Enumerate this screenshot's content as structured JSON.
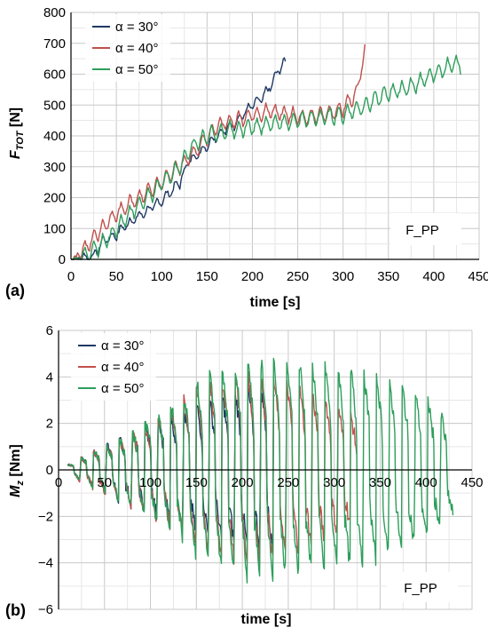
{
  "chart_data": [
    {
      "type": "line",
      "panel_label": "(a)",
      "xlabel": "time [s]",
      "ylabel": "F_TOT [N]",
      "ylabel_main": "F",
      "ylabel_sub": "TOT",
      "ylabel_unit": " [N]",
      "xlim": [
        0,
        450
      ],
      "ylim": [
        0,
        800
      ],
      "xticks": [
        "0",
        "50",
        "100",
        "150",
        "200",
        "250",
        "300",
        "350",
        "400",
        "450"
      ],
      "yticks": [
        "0",
        "100",
        "200",
        "300",
        "400",
        "500",
        "600",
        "700",
        "800"
      ],
      "annotation": "F_PP",
      "grid": true,
      "legend_position": "top-left",
      "series": [
        {
          "name": "α = 30°",
          "color": "#1f3864",
          "x": [
            0,
            15,
            25,
            35,
            50,
            60,
            75,
            90,
            100,
            110,
            120,
            130,
            140,
            150,
            160,
            170,
            180,
            190,
            200,
            210,
            220,
            230,
            237
          ],
          "y": [
            0,
            5,
            10,
            60,
            80,
            110,
            140,
            170,
            190,
            220,
            250,
            320,
            340,
            370,
            400,
            420,
            440,
            470,
            500,
            520,
            560,
            620,
            640
          ],
          "oscillation": 35
        },
        {
          "name": "α = 40°",
          "color": "#c0504d",
          "x": [
            0,
            10,
            20,
            30,
            40,
            50,
            60,
            70,
            80,
            90,
            100,
            110,
            120,
            130,
            140,
            150,
            160,
            180,
            200,
            220,
            240,
            260,
            280,
            300,
            315,
            325
          ],
          "y": [
            0,
            20,
            50,
            90,
            120,
            150,
            170,
            190,
            210,
            230,
            250,
            280,
            300,
            330,
            360,
            400,
            430,
            450,
            470,
            480,
            470,
            460,
            470,
            490,
            540,
            700
          ],
          "oscillation": 55
        },
        {
          "name": "α = 50°",
          "color": "#2e9e5b",
          "x": [
            0,
            15,
            30,
            45,
            60,
            75,
            90,
            105,
            120,
            135,
            150,
            175,
            200,
            225,
            250,
            275,
            300,
            325,
            350,
            375,
            400,
            420,
            430
          ],
          "y": [
            0,
            10,
            40,
            80,
            130,
            180,
            220,
            260,
            300,
            370,
            400,
            420,
            430,
            440,
            450,
            460,
            470,
            500,
            540,
            560,
            600,
            630,
            630
          ],
          "oscillation": 60
        }
      ]
    },
    {
      "type": "line",
      "panel_label": "(b)",
      "xlabel": "time [s]",
      "ylabel": "M_z [Nm]",
      "ylabel_main": "M",
      "ylabel_sub": "z",
      "ylabel_unit": " [Nm]",
      "xlim": [
        0,
        450
      ],
      "ylim": [
        -6,
        6
      ],
      "xticks": [
        "0",
        "50",
        "100",
        "150",
        "200",
        "250",
        "300",
        "350",
        "400",
        "450"
      ],
      "yticks": [
        "−6",
        "−4",
        "−2",
        "0",
        "2",
        "4",
        "6"
      ],
      "annotation": "F_PP",
      "grid": true,
      "legend_position": "top-left",
      "series": [
        {
          "name": "α = 30°",
          "color": "#1f3864",
          "x_start": 10,
          "x_end": 235,
          "period": 14,
          "amp_x": [
            10,
            40,
            80,
            120,
            160,
            200,
            235
          ],
          "amp": [
            0.2,
            0.8,
            1.5,
            2.2,
            2.8,
            3.2,
            3.5
          ]
        },
        {
          "name": "α = 40°",
          "color": "#c0504d",
          "x_start": 10,
          "x_end": 325,
          "period": 14,
          "amp_x": [
            10,
            40,
            80,
            120,
            160,
            200,
            250,
            300,
            325
          ],
          "amp": [
            0.2,
            0.8,
            1.5,
            2.5,
            3.5,
            4.0,
            3.6,
            2.8,
            2.0
          ]
        },
        {
          "name": "α = 50°",
          "color": "#2e9e5b",
          "x_start": 10,
          "x_end": 430,
          "period": 14,
          "amp_x": [
            10,
            40,
            80,
            120,
            160,
            200,
            250,
            300,
            350,
            400,
            430
          ],
          "amp": [
            0.2,
            0.8,
            1.5,
            2.5,
            4.0,
            4.6,
            4.5,
            4.3,
            3.8,
            3.0,
            1.8
          ]
        }
      ]
    }
  ]
}
